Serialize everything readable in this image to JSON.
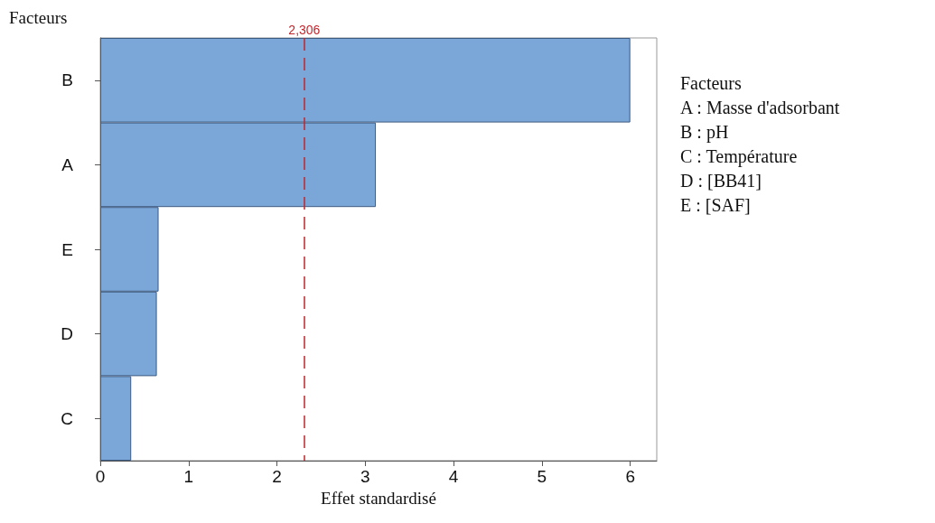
{
  "chart_data": {
    "type": "bar",
    "orientation": "horizontal",
    "ylabel": "Facteurs",
    "xlabel": "Effet standardisé",
    "categories": [
      "B",
      "A",
      "E",
      "D",
      "C"
    ],
    "values": [
      6.0,
      3.12,
      0.66,
      0.64,
      0.35
    ],
    "color": "#7ba6d8",
    "xlim": [
      0,
      6.3
    ],
    "xticks": [
      0,
      1,
      2,
      3,
      4,
      5,
      6
    ],
    "grid": false,
    "ref_lines": [
      {
        "axis": "x",
        "value": 2.306,
        "label": "2,306",
        "color": "#c0272d",
        "line_style": "dashed"
      }
    ],
    "annotations": [
      "Facteurs",
      "A : Masse d'adsorbant",
      "B : pH",
      "C : Température",
      "D : [BB41]",
      "E : [SAF]"
    ]
  }
}
